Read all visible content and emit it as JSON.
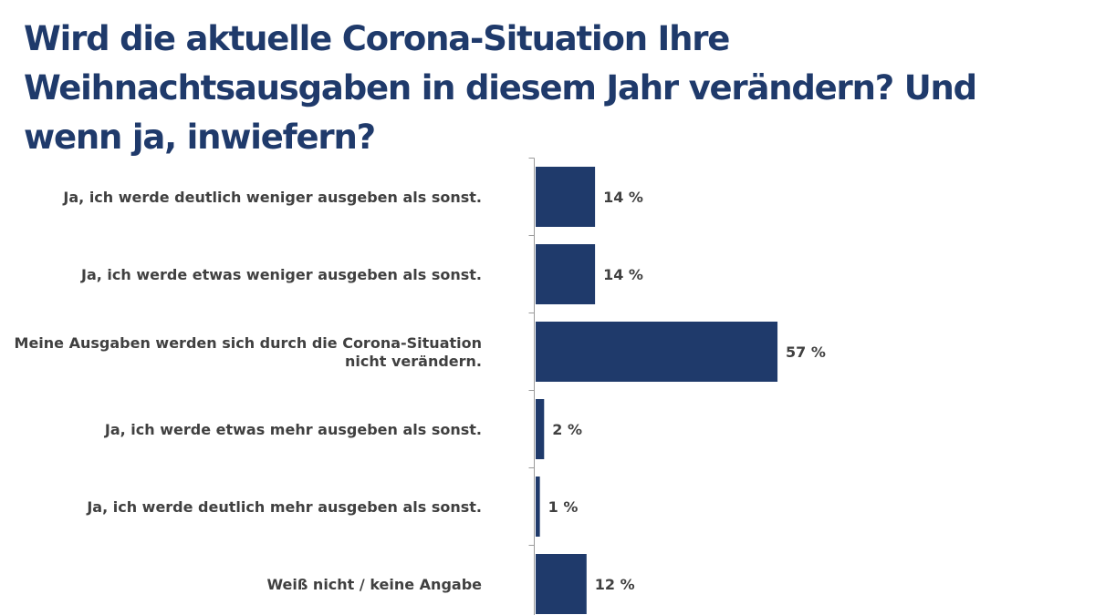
{
  "chart_data": {
    "type": "bar",
    "orientation": "horizontal",
    "title": "Wird die aktuelle Corona-Situation Ihre Weihnachtsausgaben in diesem Jahr verändern? Und wenn ja, inwiefern?",
    "categories": [
      [
        "Ja, ich werde deutlich weniger ausgeben als sonst."
      ],
      [
        "Ja, ich werde etwas weniger ausgeben als sonst."
      ],
      [
        "Meine Ausgaben werden sich durch die Corona-Situation",
        "nicht verändern."
      ],
      [
        "Ja, ich werde etwas mehr ausgeben als sonst."
      ],
      [
        "Ja, ich werde deutlich mehr ausgeben als sonst."
      ],
      [
        "Weiß nicht / keine Angabe"
      ]
    ],
    "values": [
      14,
      14,
      57,
      2,
      1,
      12
    ],
    "value_labels": [
      "14 %",
      "14 %",
      "57 %",
      "2 %",
      "1 %",
      "12 %"
    ],
    "unit": "%",
    "xlim": [
      0,
      60
    ],
    "grid": false,
    "legend": "none",
    "bar_color": "#1f3a6b"
  }
}
